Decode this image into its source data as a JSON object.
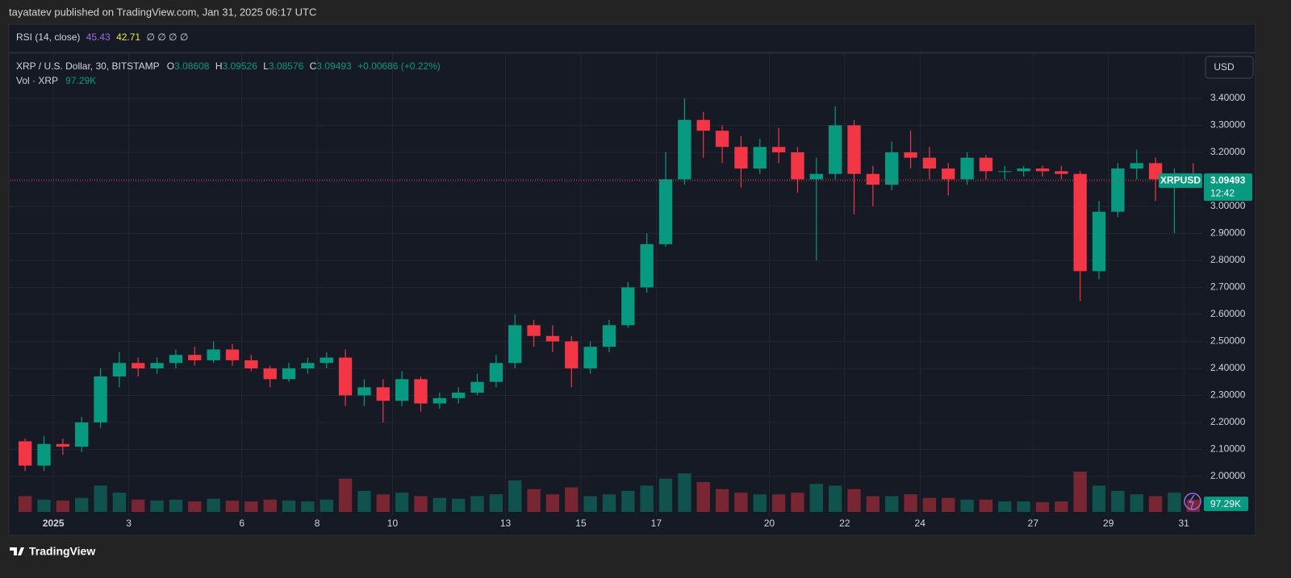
{
  "header": {
    "publisher": "tayatatev published on TradingView.com, Jan 31, 2025 06:17 UTC"
  },
  "indicators": {
    "rsi": {
      "name": "RSI (14, close)",
      "value1": 45.43,
      "value2": 42.71,
      "placeholders": "∅ ∅ ∅ ∅"
    }
  },
  "chart_data": {
    "type": "candlestick",
    "title": "XRP / U.S. Dollar, 30, BITSTAMP",
    "ohlc_labels": [
      "O",
      "H",
      "L",
      "C"
    ],
    "ohlc_values": [
      3.08608,
      3.09526,
      3.08576,
      3.09493
    ],
    "change": "+0.00686 (+0.22%)",
    "volume_label": "Vol · XRP",
    "volume_value": "97.29K",
    "currency": "USD",
    "symbol": "XRPUSD",
    "countdown": "12:42",
    "up_color": "#089981",
    "down_color": "#f23645",
    "grid": true,
    "x": [
      -1,
      -0.5,
      0,
      0.5,
      1,
      1.5,
      2,
      2.5,
      3,
      3.5,
      4,
      4.5,
      5,
      5.5,
      6,
      6.5,
      7,
      7.5,
      8,
      8.5,
      9,
      9.5,
      10,
      10.5,
      11,
      11.5,
      12,
      12.5,
      13,
      13.5,
      14,
      14.5,
      15,
      15.5,
      16,
      16.5,
      17,
      17.5,
      18,
      18.5,
      19,
      19.5,
      20,
      20.5,
      21,
      21.5,
      22,
      22.5,
      23,
      23.5,
      24,
      24.5,
      25,
      25.5,
      26,
      26.5,
      27,
      27.5,
      28,
      28.5,
      29,
      29.5,
      30
    ],
    "open": [
      2.13,
      2.04,
      2.12,
      2.11,
      2.2,
      2.37,
      2.42,
      2.4,
      2.42,
      2.45,
      2.43,
      2.47,
      2.43,
      2.4,
      2.36,
      2.4,
      2.42,
      2.44,
      2.3,
      2.33,
      2.28,
      2.36,
      2.27,
      2.29,
      2.31,
      2.35,
      2.42,
      2.56,
      2.52,
      2.5,
      2.4,
      2.48,
      2.56,
      2.7,
      2.86,
      3.1,
      3.32,
      3.28,
      3.22,
      3.14,
      3.22,
      3.2,
      3.1,
      3.12,
      3.3,
      3.12,
      3.08,
      3.2,
      3.18,
      3.14,
      3.1,
      3.18,
      3.13,
      3.13,
      3.14,
      3.13,
      3.12,
      2.76,
      2.98,
      3.14,
      3.16,
      3.1,
      3.12
    ],
    "high": [
      2.14,
      2.15,
      2.14,
      2.22,
      2.4,
      2.46,
      2.44,
      2.44,
      2.47,
      2.48,
      2.5,
      2.49,
      2.45,
      2.41,
      2.42,
      2.44,
      2.46,
      2.47,
      2.36,
      2.36,
      2.39,
      2.37,
      2.31,
      2.33,
      2.38,
      2.45,
      2.6,
      2.58,
      2.56,
      2.52,
      2.5,
      2.58,
      2.72,
      2.9,
      3.2,
      3.4,
      3.35,
      3.3,
      3.26,
      3.25,
      3.29,
      3.22,
      3.18,
      3.37,
      3.32,
      3.15,
      3.24,
      3.28,
      3.22,
      3.16,
      3.2,
      3.19,
      3.15,
      3.15,
      3.15,
      3.15,
      3.13,
      3.02,
      3.16,
      3.21,
      3.18,
      3.14,
      3.16
    ],
    "low": [
      2.02,
      2.02,
      2.08,
      2.09,
      2.18,
      2.33,
      2.37,
      2.38,
      2.4,
      2.41,
      2.42,
      2.41,
      2.39,
      2.33,
      2.35,
      2.38,
      2.4,
      2.26,
      2.26,
      2.2,
      2.26,
      2.24,
      2.25,
      2.27,
      2.3,
      2.33,
      2.4,
      2.48,
      2.46,
      2.33,
      2.38,
      2.46,
      2.55,
      2.68,
      2.85,
      3.08,
      3.18,
      3.16,
      3.07,
      3.12,
      3.16,
      3.05,
      2.8,
      3.1,
      2.97,
      3.0,
      3.06,
      3.14,
      3.1,
      3.04,
      3.08,
      3.1,
      3.1,
      3.11,
      3.11,
      3.1,
      2.65,
      2.73,
      2.96,
      3.1,
      3.02,
      2.9,
      3.08
    ],
    "close": [
      2.04,
      2.12,
      2.11,
      2.2,
      2.37,
      2.42,
      2.4,
      2.42,
      2.45,
      2.43,
      2.47,
      2.43,
      2.4,
      2.36,
      2.4,
      2.42,
      2.44,
      2.3,
      2.33,
      2.28,
      2.36,
      2.27,
      2.29,
      2.31,
      2.35,
      2.42,
      2.56,
      2.52,
      2.5,
      2.4,
      2.48,
      2.56,
      2.7,
      2.86,
      3.1,
      3.32,
      3.28,
      3.22,
      3.14,
      3.22,
      3.2,
      3.1,
      3.12,
      3.3,
      3.12,
      3.08,
      3.2,
      3.18,
      3.14,
      3.1,
      3.18,
      3.13,
      3.13,
      3.14,
      3.13,
      3.12,
      2.76,
      2.98,
      3.14,
      3.16,
      3.1,
      3.12,
      3.09493
    ],
    "volume": [
      900,
      700,
      650,
      800,
      1500,
      1100,
      700,
      650,
      700,
      600,
      750,
      650,
      600,
      700,
      650,
      600,
      700,
      1900,
      1200,
      1000,
      1100,
      900,
      800,
      750,
      900,
      1000,
      1800,
      1300,
      1000,
      1400,
      900,
      1000,
      1200,
      1500,
      1900,
      2200,
      1700,
      1300,
      1100,
      1000,
      1000,
      1100,
      1600,
      1500,
      1300,
      900,
      900,
      1000,
      800,
      800,
      700,
      700,
      600,
      600,
      550,
      600,
      2300,
      1500,
      1200,
      1000,
      900,
      1100,
      700
    ],
    "xlim": [
      -1.16,
      30.49
    ],
    "xticks": [
      {
        "value": 0,
        "label": "2025"
      },
      {
        "value": 2,
        "label": "3"
      },
      {
        "value": 5,
        "label": "6"
      },
      {
        "value": 7,
        "label": "8"
      },
      {
        "value": 9,
        "label": "10"
      },
      {
        "value": 12,
        "label": "13"
      },
      {
        "value": 14,
        "label": "15"
      },
      {
        "value": 16,
        "label": "17"
      },
      {
        "value": 19,
        "label": "20"
      },
      {
        "value": 21,
        "label": "22"
      },
      {
        "value": 23,
        "label": "24"
      },
      {
        "value": 26,
        "label": "27"
      },
      {
        "value": 28,
        "label": "29"
      },
      {
        "value": 30,
        "label": "31"
      }
    ],
    "ylim": [
      1.785,
      3.567
    ],
    "yticks": [
      {
        "value": 2,
        "label": "2.00000"
      },
      {
        "value": 2.1,
        "label": "2.10000"
      },
      {
        "value": 2.2,
        "label": "2.20000"
      },
      {
        "value": 2.3,
        "label": "2.30000"
      },
      {
        "value": 2.4,
        "label": "2.40000"
      },
      {
        "value": 2.5,
        "label": "2.50000"
      },
      {
        "value": 2.6,
        "label": "2.60000"
      },
      {
        "value": 2.7,
        "label": "2.70000"
      },
      {
        "value": 2.8,
        "label": "2.80000"
      },
      {
        "value": 2.9,
        "label": "2.90000"
      },
      {
        "value": 3,
        "label": "3.00000"
      },
      {
        "value": 3.1,
        "label": "3.10000"
      },
      {
        "value": 3.2,
        "label": "3.20000"
      },
      {
        "value": 3.3,
        "label": "3.30000"
      },
      {
        "value": 3.4,
        "label": "3.40000"
      }
    ]
  },
  "footer": {
    "brand": "TradingView"
  }
}
